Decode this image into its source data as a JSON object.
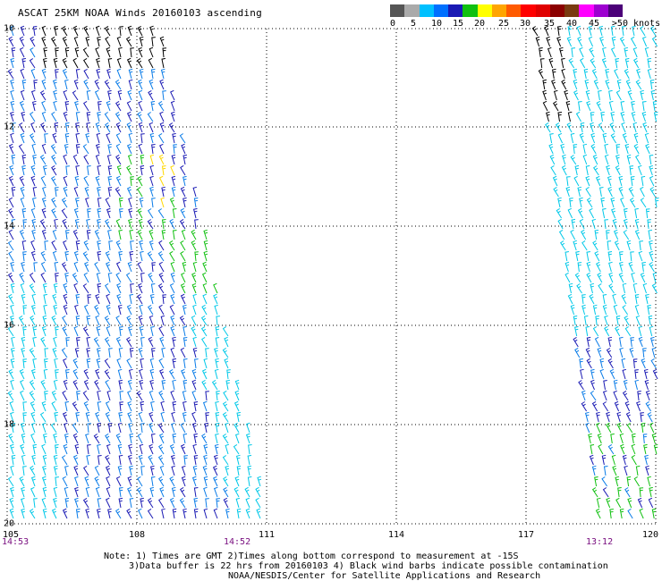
{
  "title": "ASCAT 25KM NOAA Winds 20160103 ascending",
  "scale": {
    "colors": [
      "#555555",
      "#aaaaaa",
      "#00c0ff",
      "#0070ff",
      "#1a1ab4",
      "#10c010",
      "#ffff00",
      "#ffa500",
      "#ff5a00",
      "#ff0000",
      "#e00000",
      "#8b0000",
      "#7a3a10",
      "#ff00ff",
      "#9d00d0",
      "#4b0078"
    ],
    "labels": [
      "0",
      "5",
      "10",
      "15",
      "20",
      "25",
      "30",
      "35",
      "40",
      "45",
      ">50 knots"
    ]
  },
  "axes": {
    "lat_labels": [
      "10",
      "12",
      "14",
      "16",
      "18",
      "20"
    ],
    "lon_labels": [
      "105",
      "108",
      "111",
      "114",
      "117",
      "120"
    ]
  },
  "times": {
    "left_start": "14:53",
    "left_end": "14:52",
    "right": "13:12"
  },
  "notes": [
    "Note: 1) Times are GMT 2)Times along bottom correspond to measurement at -15S",
    "3)Data buffer is 22 hrs from 20160103 4) Black wind barbs indicate possible contamination",
    "NOAA/NESDIS/Center for Satellite Applications and Research"
  ]
}
